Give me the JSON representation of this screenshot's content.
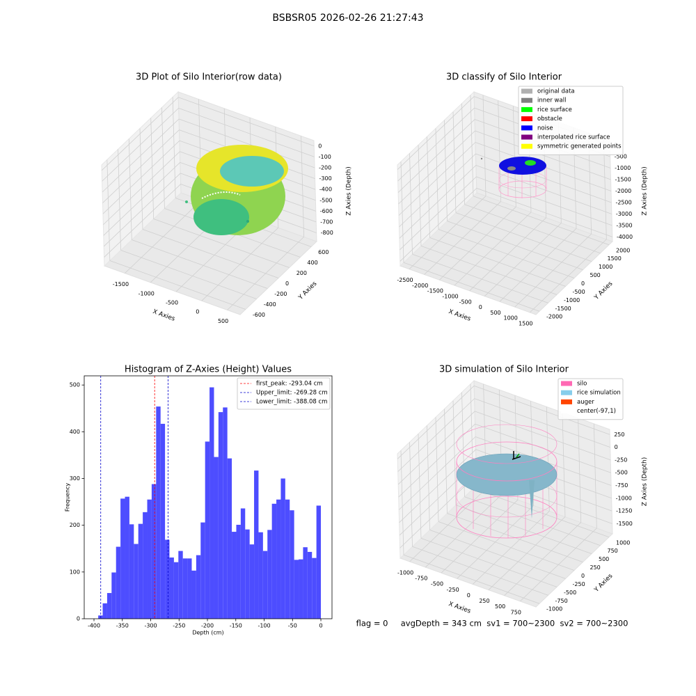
{
  "title": "BSBSR05 2026-02-26 21:27:43",
  "footer": "flag = 0     avgDepth = 343 cm  sv1 = 700~2300  sv2 = 700~2300",
  "chart_data": [
    {
      "type": "scatter3d",
      "title": "3D Plot of Silo Interior(row data)",
      "xlabel": "X Axies",
      "ylabel": "Y Axies",
      "zlabel": "Z Axies (Depth)",
      "xlim": [
        -1900,
        750
      ],
      "ylim": [
        -700,
        700
      ],
      "zlim": [
        -880,
        50
      ],
      "xticks": [
        -1500,
        -1000,
        -500,
        0,
        500
      ],
      "yticks": [
        -600,
        -400,
        -200,
        0,
        200,
        400,
        600
      ],
      "zticks": [
        0,
        -100,
        -200,
        -300,
        -400,
        -500,
        -600,
        -700,
        -800
      ],
      "grid": true
    },
    {
      "type": "scatter3d",
      "title": "3D classify of Silo Interior",
      "xlabel": "X Axies",
      "ylabel": "Y Axies",
      "zlabel": "Z Axies (Depth)",
      "xlim": [
        -2800,
        1700
      ],
      "ylim": [
        -2200,
        2200
      ],
      "zlim": [
        -4200,
        200
      ],
      "xticks": [
        -2500,
        -2000,
        -1500,
        -1000,
        -500,
        0,
        500,
        1000,
        1500
      ],
      "yticks": [
        -2000,
        -1500,
        -1000,
        -500,
        0,
        500,
        1000,
        1500,
        2000
      ],
      "zticks": [
        0,
        -500,
        -1000,
        -1500,
        -2000,
        -2500,
        -3000,
        -3500,
        -4000
      ],
      "grid": true,
      "legend": [
        {
          "label": "original data",
          "color": "#b0b0b0"
        },
        {
          "label": "inner wall",
          "color": "#808080"
        },
        {
          "label": "rice surface",
          "color": "#00ff00"
        },
        {
          "label": "obstacle",
          "color": "#ff0000"
        },
        {
          "label": "noise",
          "color": "#0000ff"
        },
        {
          "label": "interpolated rice surface",
          "color": "#800080"
        },
        {
          "label": "symmetric generated points",
          "color": "#ffff00"
        }
      ]
    },
    {
      "type": "histogram",
      "title": "Histogram of Z-Axies (Height) Values",
      "xlabel": "Depth (cm)",
      "ylabel": "Frequency",
      "color": "#4d4dff",
      "xlim": [
        -417.2,
        19.6
      ],
      "ylim": [
        0,
        519.6
      ],
      "xticks": [
        -400,
        -350,
        -300,
        -250,
        -200,
        -150,
        -100,
        -50,
        0
      ],
      "yticks": [
        0,
        100,
        200,
        300,
        400,
        500
      ],
      "bins": [
        -392.5,
        -384.65,
        -376.8,
        -368.95,
        -361.1,
        -353.25,
        -345.4,
        -337.55,
        -329.7,
        -321.85,
        -314,
        -306.15,
        -298.3,
        -290.45,
        -282.6,
        -274.75,
        -266.9,
        -259.05,
        -251.2,
        -243.35,
        -235.5,
        -227.65,
        -219.8,
        -211.95,
        -204.1,
        -196.25,
        -188.4,
        -180.55,
        -172.7,
        -164.85,
        -157,
        -149.15,
        -141.3,
        -133.45,
        -125.6,
        -117.75,
        -109.9,
        -102.05,
        -94.2,
        -86.35,
        -78.5,
        -70.65,
        -62.8,
        -54.95,
        -47.1,
        -39.25,
        -31.4,
        -23.55,
        -15.7,
        -7.85,
        0
      ],
      "values": [
        7,
        33,
        55,
        99,
        154,
        257,
        261,
        202,
        160,
        203,
        228,
        255,
        288,
        454,
        417,
        169,
        131,
        121,
        145,
        129,
        129,
        103,
        136,
        206,
        379,
        495,
        346,
        442,
        452,
        343,
        186,
        201,
        236,
        191,
        159,
        317,
        185,
        145,
        190,
        246,
        255,
        300,
        255,
        232,
        126,
        127,
        153,
        143,
        130,
        242
      ],
      "vlines": [
        {
          "value": -293.04,
          "label": "first_peak: -293.04 cm",
          "color": "#ff0000"
        },
        {
          "value": -269.28,
          "label": "Upper_limit: -269.28 cm",
          "color": "#0000cc"
        },
        {
          "value": -388.08,
          "label": "Lower_limit: -388.08 cm",
          "color": "#0000cc"
        }
      ]
    },
    {
      "type": "surface3d",
      "title": "3D simulation of Silo Interior",
      "xlabel": "X Axies",
      "ylabel": "Y Axies",
      "zlabel": "Z Axies (Depth)",
      "xlim": [
        -1150,
        1000
      ],
      "ylim": [
        -1100,
        1100
      ],
      "zlim": [
        -1700,
        350
      ],
      "xticks": [
        -1000,
        -750,
        -500,
        -250,
        0,
        250,
        500,
        750
      ],
      "yticks": [
        -1000,
        -750,
        -500,
        -250,
        0,
        250,
        500,
        750,
        1000
      ],
      "zticks": [
        250,
        0,
        -250,
        -500,
        -750,
        -1000,
        -1250,
        -1500
      ],
      "grid": true,
      "legend": [
        {
          "label": "silo",
          "color": "#ff69b4"
        },
        {
          "label": "rice simulation",
          "color": "#87ceeb"
        },
        {
          "label": "auger",
          "color": "#ff4500"
        },
        {
          "label": "center(-97,1)",
          "color": "#ffffff"
        }
      ]
    }
  ]
}
